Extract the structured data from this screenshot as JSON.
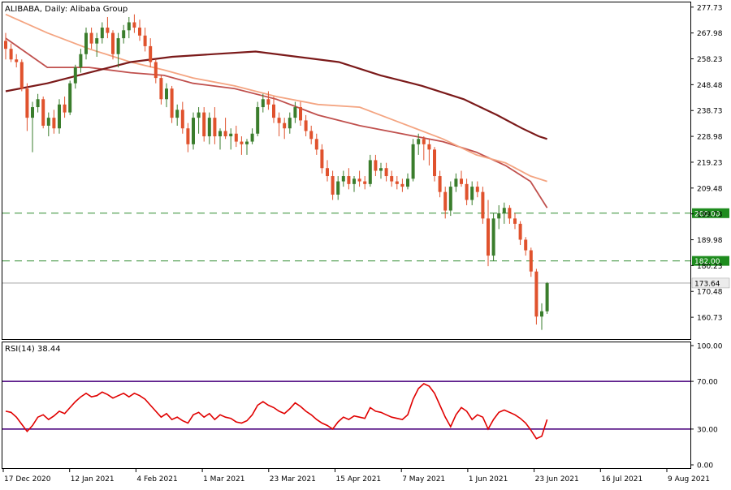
{
  "chart_data": [
    {
      "type": "candlestick",
      "title": "ALIBABA, Daily:  Alibaba Group",
      "symbol": "ALIBABA",
      "timeframe": "Daily",
      "instrument": "Alibaba Group",
      "y_ticks": [
        "277.73",
        "267.98",
        "258.23",
        "248.48",
        "238.73",
        "228.98",
        "219.23",
        "209.48",
        "199.73",
        "189.98",
        "180.23",
        "170.48",
        "160.73"
      ],
      "ylim": [
        152.5,
        279.5
      ],
      "levels": [
        {
          "label": "200.00",
          "value": 200.0,
          "style": "dashed",
          "color": "#2e8b2e"
        },
        {
          "label": "182.00",
          "value": 182.0,
          "style": "dashed",
          "color": "#2e8b2e"
        }
      ],
      "current_price": {
        "label": "173.64",
        "value": 173.64
      },
      "series": [
        {
          "name": "MA fast",
          "color": "#c0504d",
          "points": [
            [
              0,
              266
            ],
            [
              10,
              255
            ],
            [
              20,
              255
            ],
            [
              30,
              253
            ],
            [
              38,
              252
            ],
            [
              45,
              249
            ],
            [
              55,
              247
            ],
            [
              65,
              243
            ],
            [
              75,
              237
            ],
            [
              85,
              233
            ],
            [
              95,
              230
            ],
            [
              105,
              227
            ],
            [
              113,
              223
            ],
            [
              120,
              218
            ],
            [
              126,
              212
            ],
            [
              130,
              202
            ]
          ]
        },
        {
          "name": "MA mid",
          "color": "#f4a582",
          "points": [
            [
              0,
              275
            ],
            [
              10,
              268
            ],
            [
              20,
              262
            ],
            [
              30,
              257
            ],
            [
              38,
              254
            ],
            [
              45,
              251
            ],
            [
              55,
              248
            ],
            [
              65,
              244
            ],
            [
              75,
              241
            ],
            [
              85,
              240
            ],
            [
              95,
              234
            ],
            [
              105,
              228
            ],
            [
              113,
              222
            ],
            [
              120,
              219
            ],
            [
              126,
              214
            ],
            [
              130,
              212
            ]
          ]
        },
        {
          "name": "MA slow",
          "color": "#7b1a1a",
          "points": [
            [
              0,
              246
            ],
            [
              10,
              249
            ],
            [
              20,
              253
            ],
            [
              30,
              257
            ],
            [
              40,
              259
            ],
            [
              50,
              260
            ],
            [
              60,
              261
            ],
            [
              70,
              259
            ],
            [
              80,
              257
            ],
            [
              90,
              252
            ],
            [
              100,
              248
            ],
            [
              110,
              243
            ],
            [
              118,
              237
            ],
            [
              124,
              232
            ],
            [
              128,
              229
            ],
            [
              130,
              228
            ]
          ]
        }
      ],
      "candles": [
        [
          0,
          265,
          268,
          258,
          262
        ],
        [
          1,
          262,
          264,
          257,
          258
        ],
        [
          2,
          258,
          260,
          255,
          257
        ],
        [
          3,
          257,
          258,
          246,
          247
        ],
        [
          4,
          247,
          249,
          231,
          236
        ],
        [
          5,
          236,
          242,
          223,
          240
        ],
        [
          6,
          240,
          245,
          238,
          243
        ],
        [
          7,
          243,
          244,
          232,
          233
        ],
        [
          8,
          233,
          238,
          229,
          236
        ],
        [
          9,
          236,
          239,
          230,
          232
        ],
        [
          10,
          232,
          243,
          230,
          241
        ],
        [
          11,
          241,
          244,
          236,
          238
        ],
        [
          12,
          238,
          250,
          237,
          249
        ],
        [
          13,
          249,
          256,
          247,
          255
        ],
        [
          14,
          255,
          262,
          253,
          260
        ],
        [
          15,
          260,
          270,
          258,
          268
        ],
        [
          16,
          268,
          270,
          262,
          264
        ],
        [
          17,
          264,
          268,
          259,
          266
        ],
        [
          18,
          266,
          272,
          264,
          270
        ],
        [
          19,
          270,
          274,
          266,
          268
        ],
        [
          20,
          268,
          269,
          258,
          260
        ],
        [
          21,
          260,
          268,
          255,
          266
        ],
        [
          22,
          266,
          271,
          264,
          269
        ],
        [
          23,
          269,
          274,
          266,
          272
        ],
        [
          24,
          272,
          275,
          268,
          270
        ],
        [
          25,
          270,
          273,
          265,
          267
        ],
        [
          26,
          267,
          270,
          261,
          263
        ],
        [
          27,
          263,
          266,
          255,
          257
        ],
        [
          28,
          257,
          258,
          249,
          251
        ],
        [
          29,
          251,
          252,
          241,
          243
        ],
        [
          30,
          243,
          249,
          240,
          247
        ],
        [
          31,
          247,
          248,
          234,
          236
        ],
        [
          32,
          236,
          241,
          233,
          239
        ],
        [
          33,
          239,
          242,
          230,
          232
        ],
        [
          34,
          232,
          234,
          223,
          226
        ],
        [
          35,
          226,
          238,
          224,
          236
        ],
        [
          36,
          236,
          240,
          230,
          238
        ],
        [
          37,
          238,
          240,
          227,
          229
        ],
        [
          38,
          229,
          238,
          226,
          236
        ],
        [
          39,
          236,
          240,
          226,
          229
        ],
        [
          40,
          229,
          232,
          224,
          231
        ],
        [
          41,
          231,
          236,
          228,
          229
        ],
        [
          42,
          229,
          232,
          224,
          230
        ],
        [
          43,
          230,
          233,
          225,
          227
        ],
        [
          44,
          227,
          229,
          222,
          226
        ],
        [
          45,
          226,
          228,
          222,
          227
        ],
        [
          46,
          227,
          232,
          226,
          230
        ],
        [
          47,
          230,
          242,
          229,
          240
        ],
        [
          48,
          240,
          245,
          238,
          243
        ],
        [
          49,
          243,
          246,
          239,
          241
        ],
        [
          50,
          241,
          244,
          234,
          236
        ],
        [
          51,
          236,
          238,
          229,
          234
        ],
        [
          52,
          234,
          236,
          228,
          232
        ],
        [
          53,
          232,
          238,
          230,
          236
        ],
        [
          54,
          236,
          242,
          234,
          240
        ],
        [
          55,
          240,
          242,
          233,
          235
        ],
        [
          56,
          235,
          237,
          229,
          231
        ],
        [
          57,
          231,
          233,
          226,
          228
        ],
        [
          58,
          228,
          230,
          222,
          224
        ],
        [
          59,
          224,
          226,
          215,
          217
        ],
        [
          60,
          217,
          220,
          212,
          214
        ],
        [
          61,
          214,
          216,
          205,
          207
        ],
        [
          62,
          207,
          214,
          205,
          212
        ],
        [
          63,
          212,
          216,
          210,
          214
        ],
        [
          64,
          214,
          217,
          209,
          211
        ],
        [
          65,
          211,
          214,
          208,
          213
        ],
        [
          66,
          213,
          216,
          210,
          212
        ],
        [
          67,
          212,
          214,
          209,
          211
        ],
        [
          68,
          211,
          222,
          210,
          220
        ],
        [
          69,
          220,
          222,
          214,
          216
        ],
        [
          70,
          216,
          219,
          213,
          217
        ],
        [
          71,
          217,
          219,
          212,
          214
        ],
        [
          72,
          214,
          216,
          210,
          212
        ],
        [
          73,
          212,
          214,
          209,
          211
        ],
        [
          74,
          211,
          213,
          208,
          210
        ],
        [
          75,
          210,
          215,
          209,
          213
        ],
        [
          76,
          213,
          228,
          212,
          226
        ],
        [
          77,
          226,
          230,
          222,
          228
        ],
        [
          78,
          228,
          229,
          220,
          226
        ],
        [
          79,
          226,
          228,
          218,
          224
        ],
        [
          80,
          224,
          225,
          212,
          214
        ],
        [
          81,
          214,
          216,
          206,
          208
        ],
        [
          82,
          208,
          210,
          198,
          201
        ],
        [
          83,
          201,
          212,
          199,
          210
        ],
        [
          84,
          210,
          215,
          208,
          213
        ],
        [
          85,
          213,
          216,
          210,
          211
        ],
        [
          86,
          211,
          213,
          203,
          205
        ],
        [
          87,
          205,
          212,
          203,
          210
        ],
        [
          88,
          210,
          212,
          206,
          208
        ],
        [
          89,
          208,
          210,
          196,
          198
        ],
        [
          90,
          198,
          205,
          180,
          184
        ],
        [
          91,
          184,
          200,
          182,
          198
        ],
        [
          92,
          198,
          203,
          194,
          200
        ],
        [
          93,
          200,
          204,
          196,
          202
        ],
        [
          94,
          202,
          203,
          196,
          198
        ],
        [
          95,
          198,
          200,
          194,
          196
        ],
        [
          96,
          196,
          197,
          188,
          190
        ],
        [
          97,
          190,
          191,
          184,
          186
        ],
        [
          98,
          186,
          187,
          176,
          178
        ],
        [
          99,
          178,
          179,
          158,
          161
        ],
        [
          100,
          161,
          166,
          156,
          163
        ],
        [
          101,
          163,
          174,
          162,
          173.64
        ]
      ],
      "x_ticks": [
        "17 Dec 2020",
        "12 Jan 2021",
        "4 Feb 2021",
        "1 Mar 2021",
        "23 Mar 2021",
        "15 Apr 2021",
        "7 May 2021",
        "1 Jun 2021",
        "23 Jun 2021",
        "16 Jul 2021",
        "9 Aug 2021"
      ]
    },
    {
      "type": "line",
      "title": "RSI(14) 38.44",
      "indicator": "RSI",
      "period": 14,
      "current_value": 38.44,
      "y_ticks": [
        "100.00",
        "70.00",
        "30.00",
        "0.00"
      ],
      "ylim": [
        0,
        100
      ],
      "levels": [
        {
          "label": "70.00",
          "value": 70,
          "color": "#5b1a8a"
        },
        {
          "label": "30.00",
          "value": 30,
          "color": "#5b1a8a"
        }
      ],
      "series": [
        {
          "name": "RSI",
          "color": "#e00000",
          "values": [
            45,
            44,
            40,
            34,
            28,
            33,
            40,
            42,
            38,
            41,
            45,
            43,
            48,
            53,
            57,
            60,
            57,
            58,
            61,
            59,
            56,
            58,
            60,
            57,
            60,
            58,
            55,
            50,
            45,
            40,
            43,
            38,
            40,
            37,
            35,
            42,
            44,
            40,
            43,
            38,
            42,
            40,
            39,
            36,
            35,
            37,
            42,
            50,
            53,
            50,
            48,
            45,
            43,
            47,
            52,
            49,
            45,
            42,
            38,
            35,
            33,
            30,
            36,
            40,
            38,
            41,
            40,
            39,
            48,
            45,
            44,
            42,
            40,
            39,
            38,
            42,
            55,
            64,
            68,
            66,
            60,
            50,
            40,
            32,
            42,
            48,
            45,
            38,
            42,
            40,
            30,
            38,
            44,
            46,
            44,
            42,
            39,
            35,
            29,
            22,
            24,
            38
          ]
        }
      ]
    }
  ]
}
